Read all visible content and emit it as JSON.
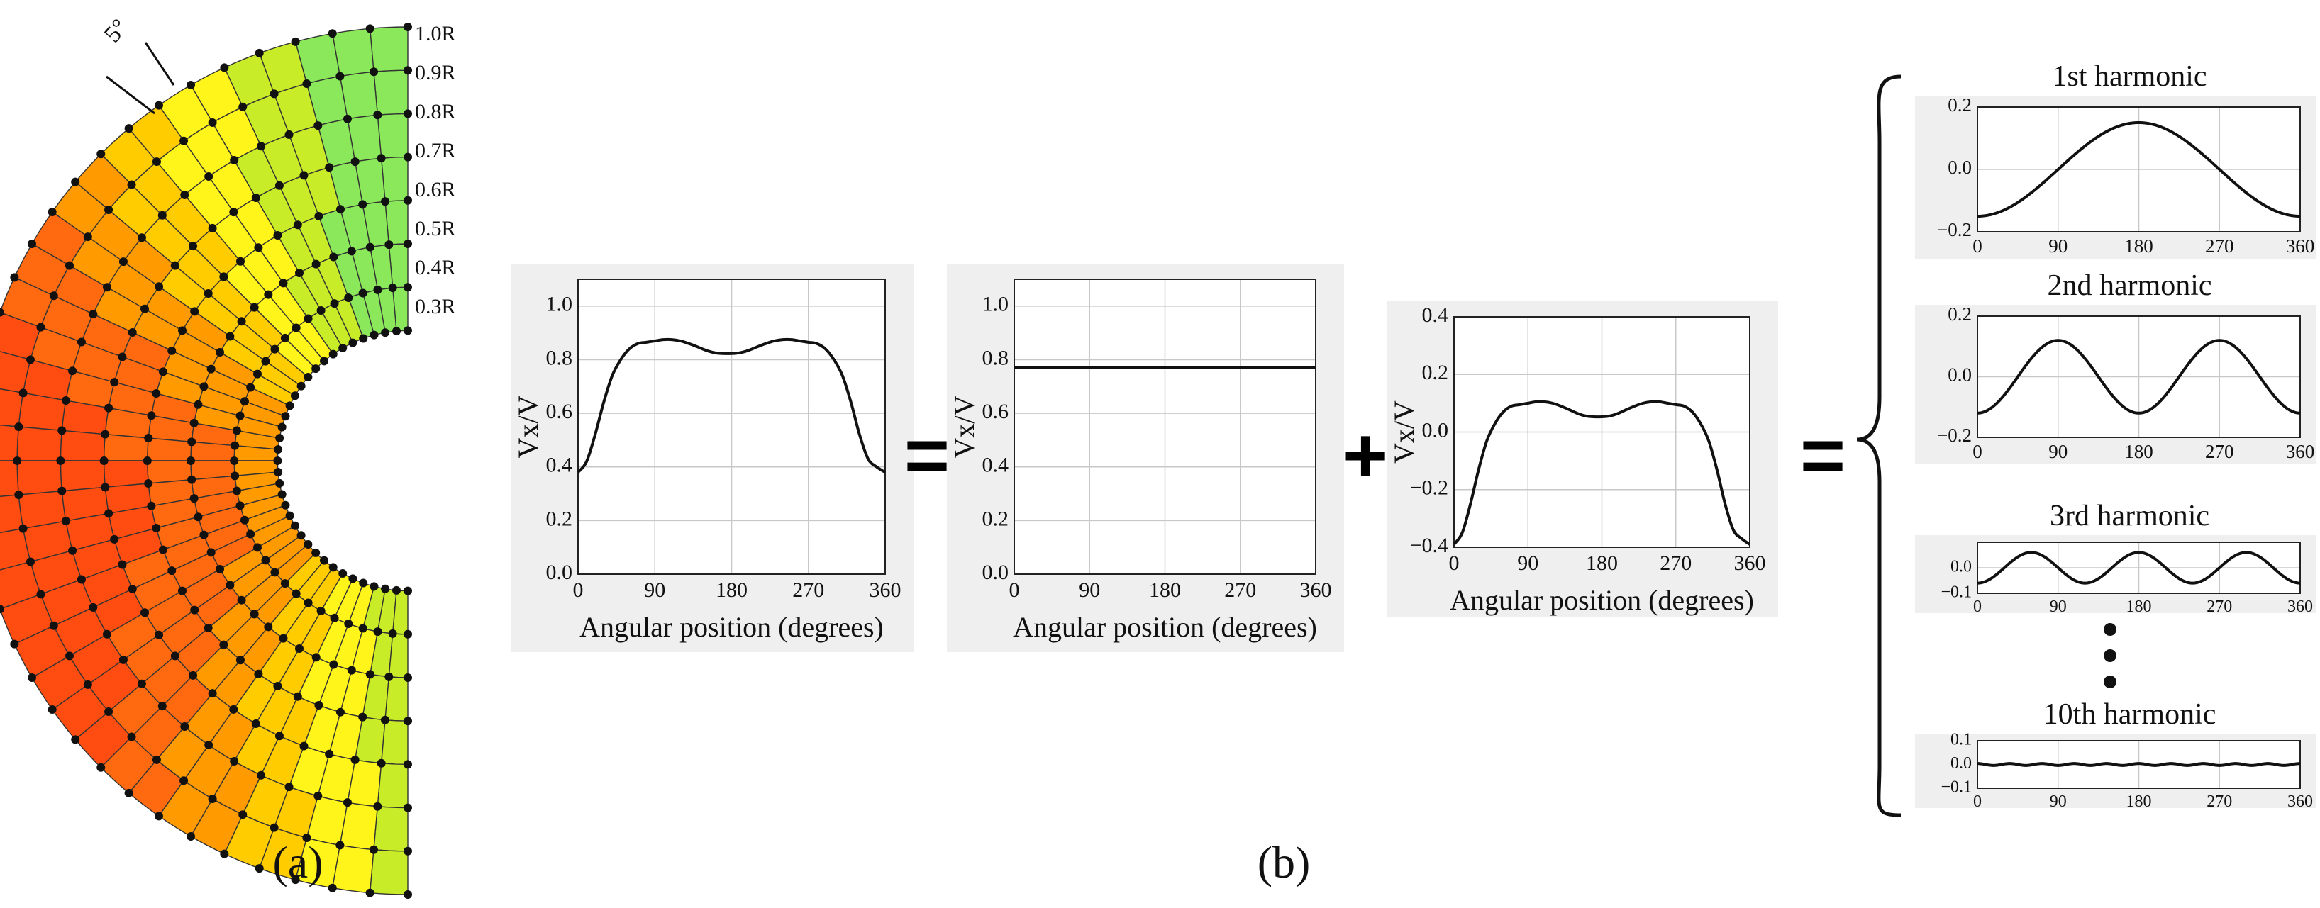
{
  "figure": {
    "panel_a_label": "(a)",
    "panel_b_label": "(b)",
    "equals_sign": "=",
    "plus_sign": "+"
  },
  "grid_figure": {
    "radius_labels": [
      "1.0R",
      "0.9R",
      "0.8R",
      "0.7R",
      "0.6R",
      "0.5R",
      "0.4R",
      "0.3R"
    ],
    "angle_label": "5°",
    "colors": [
      "#0a5fe0",
      "#1ea8f0",
      "#2ee0f0",
      "#4fe4b0",
      "#8ae85a",
      "#c8ec28",
      "#fff51a",
      "#ffcc00",
      "#ff9a00",
      "#ff6a10",
      "#ff4c10"
    ]
  },
  "chart_data": [
    {
      "id": "wake_total",
      "type": "line",
      "xlabel": "Angular position (degrees)",
      "ylabel": "Vx/V",
      "xlim": [
        0,
        360
      ],
      "ylim": [
        0,
        1.1
      ],
      "xticks": [
        0,
        90,
        180,
        270,
        360
      ],
      "yticks": [
        0.0,
        0.2,
        0.4,
        0.6,
        0.8,
        1.0
      ],
      "ytick_labels": [
        "0.0",
        "0.2",
        "0.4",
        "0.6",
        "0.8",
        "1.0"
      ],
      "grid": true,
      "series": [
        {
          "x": [
            0,
            10,
            20,
            30,
            40,
            50,
            60,
            70,
            80,
            90,
            100,
            110,
            120,
            130,
            140,
            150,
            160,
            170,
            180,
            190,
            200,
            210,
            220,
            230,
            240,
            250,
            260,
            270,
            280,
            290,
            300,
            310,
            320,
            330,
            340,
            350,
            360
          ],
          "values": [
            0.38,
            0.42,
            0.52,
            0.64,
            0.74,
            0.8,
            0.84,
            0.86,
            0.865,
            0.87,
            0.875,
            0.875,
            0.87,
            0.86,
            0.848,
            0.835,
            0.826,
            0.823,
            0.823,
            0.826,
            0.835,
            0.848,
            0.86,
            0.87,
            0.875,
            0.875,
            0.87,
            0.865,
            0.86,
            0.84,
            0.8,
            0.74,
            0.64,
            0.52,
            0.43,
            0.4,
            0.38
          ]
        }
      ]
    },
    {
      "id": "wake_mean",
      "type": "line",
      "xlabel": "Angular position (degrees)",
      "ylabel": "Vx/V",
      "xlim": [
        0,
        360
      ],
      "ylim": [
        0,
        1.1
      ],
      "xticks": [
        0,
        90,
        180,
        270,
        360
      ],
      "yticks": [
        0.0,
        0.2,
        0.4,
        0.6,
        0.8,
        1.0
      ],
      "ytick_labels": [
        "0.0",
        "0.2",
        "0.4",
        "0.6",
        "0.8",
        "1.0"
      ],
      "grid": true,
      "series": [
        {
          "x": [
            0,
            360
          ],
          "values": [
            0.77,
            0.77
          ]
        }
      ]
    },
    {
      "id": "wake_fluctuation",
      "type": "line",
      "xlabel": "Angular position (degrees)",
      "ylabel": "Vx/V",
      "xlim": [
        0,
        360
      ],
      "ylim": [
        -0.4,
        0.4
      ],
      "xticks": [
        0,
        90,
        180,
        270,
        360
      ],
      "yticks": [
        -0.4,
        -0.2,
        0.0,
        0.2,
        0.4
      ],
      "ytick_labels": [
        "−0.4",
        "−0.2",
        "0.0",
        "0.2",
        "0.4"
      ],
      "grid": true,
      "series": [
        {
          "x": [
            0,
            10,
            20,
            30,
            40,
            50,
            60,
            70,
            80,
            90,
            100,
            110,
            120,
            130,
            140,
            150,
            160,
            170,
            180,
            190,
            200,
            210,
            220,
            230,
            240,
            250,
            260,
            270,
            280,
            290,
            300,
            310,
            320,
            330,
            340,
            350,
            360
          ],
          "values": [
            -0.39,
            -0.35,
            -0.25,
            -0.13,
            -0.03,
            0.03,
            0.07,
            0.09,
            0.095,
            0.1,
            0.105,
            0.105,
            0.1,
            0.09,
            0.078,
            0.065,
            0.056,
            0.053,
            0.053,
            0.056,
            0.065,
            0.078,
            0.09,
            0.1,
            0.105,
            0.105,
            0.1,
            0.095,
            0.09,
            0.07,
            0.03,
            -0.03,
            -0.13,
            -0.25,
            -0.34,
            -0.37,
            -0.39
          ]
        }
      ]
    },
    {
      "id": "harmonic_1",
      "type": "line",
      "title": "1st harmonic",
      "xlim": [
        0,
        360
      ],
      "ylim": [
        -0.2,
        0.2
      ],
      "xticks": [
        0,
        90,
        180,
        270,
        360
      ],
      "yticks": [
        -0.2,
        0.0,
        0.2
      ],
      "ytick_labels": [
        "−0.2",
        "0.0",
        "0.2"
      ],
      "grid": true,
      "series": [
        {
          "amplitude": 0.15,
          "order": 1,
          "phase_deg": 180
        }
      ]
    },
    {
      "id": "harmonic_2",
      "type": "line",
      "title": "2nd harmonic",
      "xlim": [
        0,
        360
      ],
      "ylim": [
        -0.2,
        0.2
      ],
      "xticks": [
        0,
        90,
        180,
        270,
        360
      ],
      "yticks": [
        -0.2,
        0.0,
        0.2
      ],
      "ytick_labels": [
        "−0.2",
        "0.0",
        "0.2"
      ],
      "grid": true,
      "series": [
        {
          "amplitude": 0.12,
          "order": 2,
          "phase_deg": 180
        }
      ]
    },
    {
      "id": "harmonic_3",
      "type": "line",
      "title": "3rd harmonic",
      "xlim": [
        0,
        360
      ],
      "ylim": [
        -0.1,
        0.1
      ],
      "xticks": [
        0,
        90,
        180,
        270,
        360
      ],
      "yticks": [
        -0.1,
        0.0
      ],
      "ytick_labels": [
        "−0.1",
        "0.0"
      ],
      "grid": true,
      "series": [
        {
          "amplitude": 0.06,
          "order": 3,
          "phase_deg": 180
        }
      ]
    },
    {
      "id": "harmonic_10",
      "type": "line",
      "title": "10th harmonic",
      "xlim": [
        0,
        360
      ],
      "ylim": [
        -0.1,
        0.1
      ],
      "xticks": [
        0,
        90,
        180,
        270,
        360
      ],
      "yticks": [
        -0.1,
        0.0,
        0.1
      ],
      "ytick_labels": [
        "−0.1",
        "0.0",
        "0.1"
      ],
      "grid": true,
      "series": [
        {
          "amplitude": 0.004,
          "order": 10,
          "phase_deg": 0
        }
      ]
    }
  ]
}
